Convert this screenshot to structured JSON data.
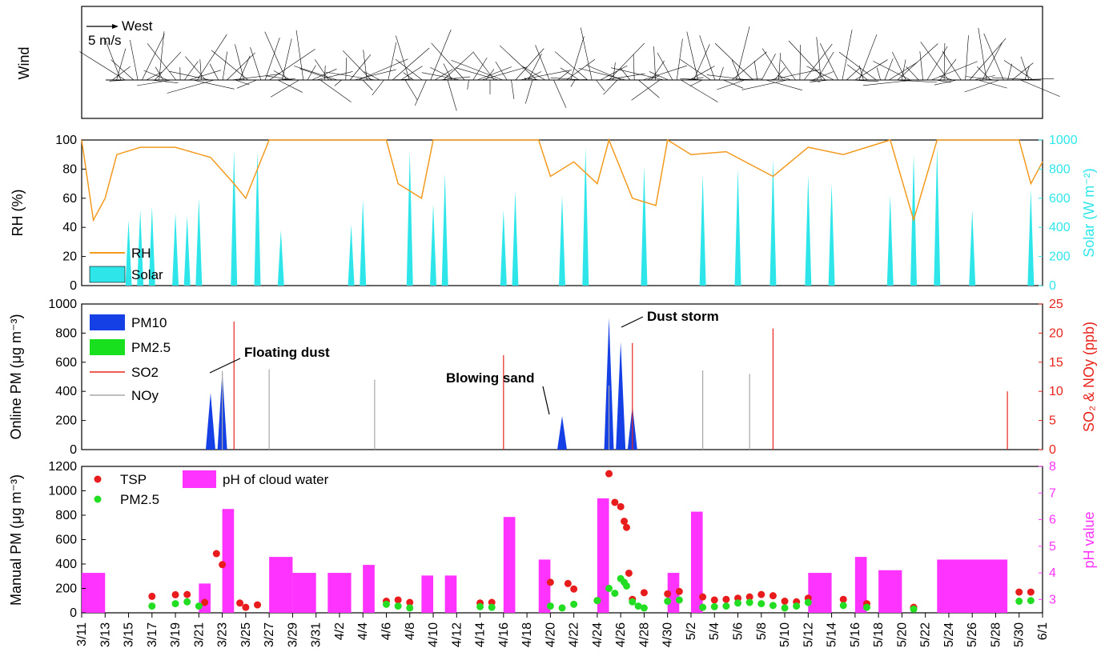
{
  "chart_data": [
    {
      "panel": "wind",
      "type": "vector",
      "ylabel": "Wind",
      "reference_vector": {
        "direction": "West",
        "speed_label": "5 m/s"
      },
      "note": ""
    },
    {
      "panel": "rh_solar",
      "type": "line+area",
      "ylabel": "RH (%)",
      "y2label": "Solar (W m⁻²)",
      "ylim": [
        0,
        100
      ],
      "y2lim": [
        0,
        1000
      ],
      "yticks": [
        "0",
        "20",
        "40",
        "60",
        "80",
        "100"
      ],
      "y2ticks": [
        "0",
        "200",
        "400",
        "600",
        "800",
        "1000"
      ],
      "legend": [
        "RH",
        "Solar"
      ],
      "colors": {
        "RH": "#f39a1e",
        "Solar": "#2ee6ea"
      },
      "rh_daily": [
        {
          "x": "3/11",
          "y": 100
        },
        {
          "x": "3/12",
          "y": 45
        },
        {
          "x": "3/13",
          "y": 60
        },
        {
          "x": "3/14",
          "y": 90
        },
        {
          "x": "3/16",
          "y": 95
        },
        {
          "x": "3/19",
          "y": 95
        },
        {
          "x": "3/22",
          "y": 88
        },
        {
          "x": "3/24",
          "y": 70
        },
        {
          "x": "3/25",
          "y": 60
        },
        {
          "x": "3/27",
          "y": 100
        },
        {
          "x": "4/6",
          "y": 100
        },
        {
          "x": "4/7",
          "y": 70
        },
        {
          "x": "4/9",
          "y": 60
        },
        {
          "x": "4/10",
          "y": 100
        },
        {
          "x": "4/19",
          "y": 100
        },
        {
          "x": "4/20",
          "y": 75
        },
        {
          "x": "4/22",
          "y": 85
        },
        {
          "x": "4/24",
          "y": 70
        },
        {
          "x": "4/25",
          "y": 100
        },
        {
          "x": "4/27",
          "y": 60
        },
        {
          "x": "4/29",
          "y": 55
        },
        {
          "x": "4/30",
          "y": 100
        },
        {
          "x": "5/2",
          "y": 90
        },
        {
          "x": "5/5",
          "y": 92
        },
        {
          "x": "5/9",
          "y": 75
        },
        {
          "x": "5/12",
          "y": 95
        },
        {
          "x": "5/15",
          "y": 90
        },
        {
          "x": "5/19",
          "y": 100
        },
        {
          "x": "5/21",
          "y": 45
        },
        {
          "x": "5/23",
          "y": 100
        },
        {
          "x": "5/30",
          "y": 100
        },
        {
          "x": "5/31",
          "y": 70
        },
        {
          "x": "6/1",
          "y": 85
        }
      ],
      "solar_daily_peak": [
        {
          "x": "3/15",
          "y": 450
        },
        {
          "x": "3/16",
          "y": 520
        },
        {
          "x": "3/17",
          "y": 540
        },
        {
          "x": "3/19",
          "y": 500
        },
        {
          "x": "3/20",
          "y": 480
        },
        {
          "x": "3/21",
          "y": 600
        },
        {
          "x": "3/24",
          "y": 930
        },
        {
          "x": "3/26",
          "y": 920
        },
        {
          "x": "3/28",
          "y": 380
        },
        {
          "x": "4/3",
          "y": 420
        },
        {
          "x": "4/4",
          "y": 590
        },
        {
          "x": "4/8",
          "y": 920
        },
        {
          "x": "4/10",
          "y": 560
        },
        {
          "x": "4/11",
          "y": 770
        },
        {
          "x": "4/16",
          "y": 520
        },
        {
          "x": "4/17",
          "y": 650
        },
        {
          "x": "4/21",
          "y": 620
        },
        {
          "x": "4/23",
          "y": 950
        },
        {
          "x": "4/28",
          "y": 820
        },
        {
          "x": "5/3",
          "y": 760
        },
        {
          "x": "5/6",
          "y": 800
        },
        {
          "x": "5/9",
          "y": 870
        },
        {
          "x": "5/12",
          "y": 760
        },
        {
          "x": "5/14",
          "y": 700
        },
        {
          "x": "5/19",
          "y": 620
        },
        {
          "x": "5/21",
          "y": 900
        },
        {
          "x": "5/23",
          "y": 960
        },
        {
          "x": "5/26",
          "y": 520
        },
        {
          "x": "5/31",
          "y": 660
        }
      ]
    },
    {
      "panel": "online_pm",
      "type": "area+line",
      "ylabel": "Online PM (μg m⁻³)",
      "y2label": "SO₂ & NOy (ppb)",
      "ylim": [
        0,
        1000
      ],
      "y2lim": [
        0,
        25
      ],
      "yticks": [
        "0",
        "200",
        "400",
        "600",
        "800",
        "1000"
      ],
      "y2ticks": [
        "0",
        "5",
        "10",
        "15",
        "20",
        "25"
      ],
      "legend": [
        "PM10",
        "PM2.5",
        "SO2",
        "NOy"
      ],
      "colors": {
        "PM10": "#1540e6",
        "PM2.5": "#19e01e",
        "SO2": "#e8241c",
        "NOy": "#a8a8a8"
      },
      "annotations": [
        "Floating dust",
        "Blowing sand",
        "Dust storm"
      ],
      "pm10_peaks": [
        {
          "x": "3/22",
          "y": 390
        },
        {
          "x": "3/23",
          "y": 540
        },
        {
          "x": "4/21",
          "y": 230
        },
        {
          "x": "4/25",
          "y": 905
        },
        {
          "x": "4/26",
          "y": 740
        },
        {
          "x": "4/27",
          "y": 300
        }
      ],
      "so2_peaks": [
        {
          "x": "3/24",
          "y": 22
        },
        {
          "x": "4/16",
          "y": 16.2
        },
        {
          "x": "4/27",
          "y": 18.3
        },
        {
          "x": "5/9",
          "y": 20.8
        },
        {
          "x": "5/29",
          "y": 10
        }
      ],
      "noy_peaks": [
        {
          "x": "3/23",
          "y": 13.5
        },
        {
          "x": "3/27",
          "y": 13.8
        },
        {
          "x": "4/5",
          "y": 12
        },
        {
          "x": "4/25",
          "y": 11
        },
        {
          "x": "5/3",
          "y": 13.6
        },
        {
          "x": "5/7",
          "y": 13
        }
      ]
    },
    {
      "panel": "manual_pm",
      "type": "scatter+bar",
      "ylabel": "Manual PM (μg m⁻³)",
      "y2label": "pH value",
      "ylim": [
        0,
        1200
      ],
      "y2lim": [
        2.5,
        8
      ],
      "yticks": [
        "0",
        "200",
        "400",
        "600",
        "800",
        "1000",
        "1200"
      ],
      "y2ticks": [
        "3",
        "4",
        "5",
        "6",
        "7",
        "8"
      ],
      "legend": [
        "TSP",
        "PM2.5",
        "pH of cloud water"
      ],
      "colors": {
        "TSP": "#e81c1c",
        "PM2.5": "#22dd22",
        "pH": "#ff33ff"
      },
      "tsp": [
        {
          "x": "3/17",
          "y": 135
        },
        {
          "x": "3/19",
          "y": 148
        },
        {
          "x": "3/20",
          "y": 150
        },
        {
          "x": "3/21.5",
          "y": 85
        },
        {
          "x": "3/22.5",
          "y": 485
        },
        {
          "x": "3/23",
          "y": 395
        },
        {
          "x": "3/24.5",
          "y": 80
        },
        {
          "x": "3/25",
          "y": 45
        },
        {
          "x": "3/26",
          "y": 65
        },
        {
          "x": "4/6",
          "y": 95
        },
        {
          "x": "4/7",
          "y": 105
        },
        {
          "x": "4/8",
          "y": 85
        },
        {
          "x": "4/14",
          "y": 80
        },
        {
          "x": "4/15",
          "y": 85
        },
        {
          "x": "4/20",
          "y": 250
        },
        {
          "x": "4/21.5",
          "y": 240
        },
        {
          "x": "4/22",
          "y": 195
        },
        {
          "x": "4/24",
          "y": 100
        },
        {
          "x": "4/25",
          "y": 1140
        },
        {
          "x": "4/25.5",
          "y": 905
        },
        {
          "x": "4/26",
          "y": 870
        },
        {
          "x": "4/26.3",
          "y": 750
        },
        {
          "x": "4/26.5",
          "y": 700
        },
        {
          "x": "4/26.7",
          "y": 325
        },
        {
          "x": "4/27",
          "y": 110
        },
        {
          "x": "4/28",
          "y": 165
        },
        {
          "x": "4/30",
          "y": 155
        },
        {
          "x": "5/1",
          "y": 175
        },
        {
          "x": "5/3",
          "y": 130
        },
        {
          "x": "5/4",
          "y": 105
        },
        {
          "x": "5/5",
          "y": 110
        },
        {
          "x": "5/6",
          "y": 120
        },
        {
          "x": "5/7",
          "y": 130
        },
        {
          "x": "5/8",
          "y": 150
        },
        {
          "x": "5/9",
          "y": 140
        },
        {
          "x": "5/10",
          "y": 95
        },
        {
          "x": "5/11",
          "y": 90
        },
        {
          "x": "5/12",
          "y": 120
        },
        {
          "x": "5/15",
          "y": 110
        },
        {
          "x": "5/17",
          "y": 75
        },
        {
          "x": "5/21",
          "y": 45
        },
        {
          "x": "5/30",
          "y": 170
        },
        {
          "x": "5/31",
          "y": 170
        }
      ],
      "pm25": [
        {
          "x": "3/17",
          "y": 55
        },
        {
          "x": "3/19",
          "y": 75
        },
        {
          "x": "3/20",
          "y": 90
        },
        {
          "x": "3/21",
          "y": 55
        },
        {
          "x": "4/6",
          "y": 70
        },
        {
          "x": "4/7",
          "y": 55
        },
        {
          "x": "4/8",
          "y": 40
        },
        {
          "x": "4/14",
          "y": 50
        },
        {
          "x": "4/15",
          "y": 45
        },
        {
          "x": "4/20",
          "y": 55
        },
        {
          "x": "4/21",
          "y": 40
        },
        {
          "x": "4/22",
          "y": 70
        },
        {
          "x": "4/24",
          "y": 100
        },
        {
          "x": "4/25",
          "y": 200
        },
        {
          "x": "4/25.5",
          "y": 160
        },
        {
          "x": "4/26",
          "y": 280
        },
        {
          "x": "4/26.3",
          "y": 250
        },
        {
          "x": "4/26.5",
          "y": 220
        },
        {
          "x": "4/27",
          "y": 90
        },
        {
          "x": "4/27.5",
          "y": 55
        },
        {
          "x": "4/28",
          "y": 40
        },
        {
          "x": "4/30",
          "y": 95
        },
        {
          "x": "5/1",
          "y": 105
        },
        {
          "x": "5/3",
          "y": 45
        },
        {
          "x": "5/4",
          "y": 50
        },
        {
          "x": "5/5",
          "y": 55
        },
        {
          "x": "5/6",
          "y": 80
        },
        {
          "x": "5/7",
          "y": 85
        },
        {
          "x": "5/8",
          "y": 75
        },
        {
          "x": "5/9",
          "y": 60
        },
        {
          "x": "5/10",
          "y": 40
        },
        {
          "x": "5/11",
          "y": 55
        },
        {
          "x": "5/12",
          "y": 85
        },
        {
          "x": "5/15",
          "y": 60
        },
        {
          "x": "5/17",
          "y": 45
        },
        {
          "x": "5/21",
          "y": 30
        },
        {
          "x": "5/30",
          "y": 95
        },
        {
          "x": "5/31",
          "y": 100
        }
      ],
      "ph_ranges": [
        {
          "start": "3/11",
          "end": "3/13",
          "y": 4.0
        },
        {
          "start": "3/21",
          "end": "3/22",
          "y": 3.6
        },
        {
          "start": "3/23",
          "end": "3/24",
          "y": 6.4
        },
        {
          "start": "3/27",
          "end": "3/29",
          "y": 4.6
        },
        {
          "start": "3/29",
          "end": "3/31",
          "y": 4.0
        },
        {
          "start": "4/1",
          "end": "4/3",
          "y": 4.0
        },
        {
          "start": "4/4",
          "end": "4/5",
          "y": 4.3
        },
        {
          "start": "4/9",
          "end": "4/10",
          "y": 3.9
        },
        {
          "start": "4/11",
          "end": "4/12",
          "y": 3.9
        },
        {
          "start": "4/16",
          "end": "4/17",
          "y": 6.1
        },
        {
          "start": "4/19",
          "end": "4/20",
          "y": 4.5
        },
        {
          "start": "4/24",
          "end": "4/25",
          "y": 6.8
        },
        {
          "start": "4/30",
          "end": "5/1",
          "y": 4.0
        },
        {
          "start": "5/2",
          "end": "5/3",
          "y": 6.3
        },
        {
          "start": "5/12",
          "end": "5/14",
          "y": 4.0
        },
        {
          "start": "5/16",
          "end": "5/17",
          "y": 4.6
        },
        {
          "start": "5/18",
          "end": "5/20",
          "y": 4.1
        },
        {
          "start": "5/23",
          "end": "5/29",
          "y": 4.5
        }
      ]
    }
  ],
  "x_axis": {
    "tick_labels": [
      "3/11",
      "3/13",
      "3/15",
      "3/17",
      "3/19",
      "3/21",
      "3/23",
      "3/25",
      "3/27",
      "3/29",
      "3/31",
      "4/2",
      "4/4",
      "4/6",
      "4/8",
      "4/10",
      "4/12",
      "4/14",
      "4/16",
      "4/18",
      "4/20",
      "4/22",
      "4/24",
      "4/26",
      "4/28",
      "4/30",
      "5/2",
      "5/4",
      "5/6",
      "5/8",
      "5/10",
      "5/12",
      "5/14",
      "5/16",
      "5/18",
      "5/20",
      "5/22",
      "5/24",
      "5/26",
      "5/28",
      "5/30",
      "6/1"
    ]
  }
}
